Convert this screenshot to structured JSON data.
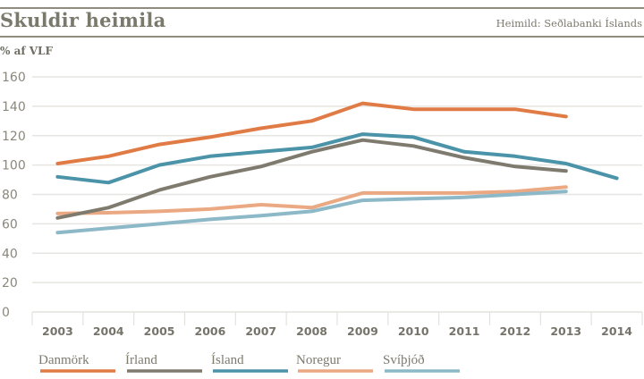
{
  "header": {
    "title": "Skuldir heimila",
    "source": "Heimild: Seðlabanki Íslands",
    "unit": "% af VLF"
  },
  "chart_data": {
    "type": "line",
    "title": "Skuldir heimila",
    "xlabel": "",
    "ylabel": "% af VLF",
    "ylim": [
      0,
      160
    ],
    "yticks": [
      0,
      20,
      40,
      60,
      80,
      100,
      120,
      140,
      160
    ],
    "grid": true,
    "legend_position": "bottom",
    "categories": [
      "2003",
      "2004",
      "2005",
      "2006",
      "2007",
      "2008",
      "2009",
      "2010",
      "2011",
      "2012",
      "2013",
      "2014"
    ],
    "series": [
      {
        "name": "Danmörk",
        "color": "#e07b45",
        "values": [
          101,
          106,
          114,
          119,
          125,
          130,
          142,
          138,
          138,
          138,
          133,
          null
        ]
      },
      {
        "name": "Írland",
        "color": "#7e7b6e",
        "values": [
          64,
          71,
          83,
          92,
          99,
          109,
          117,
          113,
          105,
          99,
          96,
          null
        ]
      },
      {
        "name": "Ísland",
        "color": "#4a93a8",
        "values": [
          92,
          88,
          100,
          106,
          109,
          112,
          121,
          119,
          109,
          106,
          101,
          91
        ]
      },
      {
        "name": "Noregur",
        "color": "#eaa982",
        "values": [
          67,
          67.5,
          68.5,
          70,
          73,
          71,
          81,
          81,
          81,
          82,
          85,
          null
        ]
      },
      {
        "name": "Svíþjóð",
        "color": "#8cb8c8",
        "values": [
          54,
          57,
          60,
          63,
          65.5,
          68.5,
          76,
          77,
          78,
          80,
          82,
          null
        ]
      }
    ]
  }
}
